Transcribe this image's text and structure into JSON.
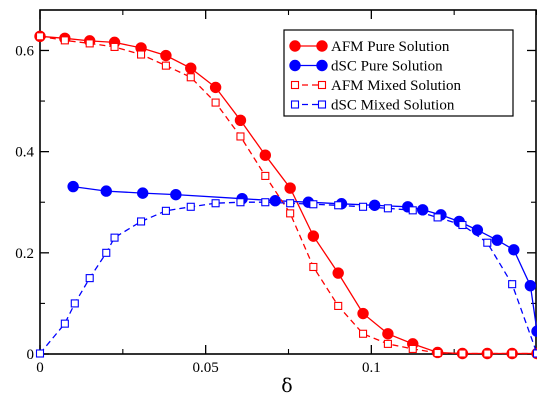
{
  "chart_data": {
    "type": "line",
    "title": "",
    "xlabel": "δ",
    "ylabel": "",
    "xlim": [
      0,
      0.15
    ],
    "ylim": [
      0,
      0.68
    ],
    "x_ticks": [
      0,
      0.05,
      0.1
    ],
    "x_tick_labels": [
      "0",
      "0.05",
      "0.1"
    ],
    "y_ticks": [
      0,
      0.2,
      0.4,
      0.6
    ],
    "y_tick_labels": [
      "0",
      "0.2",
      "0.4",
      "0.6"
    ],
    "grid": false,
    "legend_placement": "top-right",
    "series": [
      {
        "name": "AFM Pure Solution",
        "color": "#ff0000",
        "marker": "filled-circle",
        "line": "solid",
        "x": [
          0,
          0.0075,
          0.015,
          0.0225,
          0.0305,
          0.038,
          0.0455,
          0.053,
          0.0605,
          0.068,
          0.0755,
          0.0825,
          0.09,
          0.0975,
          0.105,
          0.1125,
          0.12,
          0.1275,
          0.135,
          0.1425,
          0.15
        ],
        "y": [
          0.628,
          0.624,
          0.619,
          0.616,
          0.605,
          0.59,
          0.565,
          0.527,
          0.462,
          0.393,
          0.328,
          0.233,
          0.16,
          0.08,
          0.04,
          0.02,
          0.003,
          0.001,
          0.001,
          0.001,
          0.001
        ]
      },
      {
        "name": "dSC Pure Solution",
        "color": "#0000ff",
        "marker": "filled-circle",
        "line": "solid",
        "x": [
          0.01,
          0.02,
          0.031,
          0.041,
          0.061,
          0.071,
          0.081,
          0.091,
          0.101,
          0.111,
          0.1155,
          0.121,
          0.1265,
          0.132,
          0.138,
          0.143,
          0.148,
          0.15
        ],
        "y": [
          0.331,
          0.322,
          0.318,
          0.315,
          0.307,
          0.303,
          0.3,
          0.297,
          0.294,
          0.291,
          0.285,
          0.275,
          0.262,
          0.245,
          0.225,
          0.206,
          0.135,
          0.045
        ]
      },
      {
        "name": "AFM Mixed Solution",
        "color": "#ff0000",
        "marker": "open-square",
        "line": "dashed",
        "x": [
          0,
          0.0075,
          0.015,
          0.0225,
          0.0305,
          0.038,
          0.0455,
          0.053,
          0.0605,
          0.068,
          0.0755,
          0.0825,
          0.09,
          0.0975,
          0.105,
          0.1125,
          0.12,
          0.1275,
          0.135,
          0.1425,
          0.15
        ],
        "y": [
          0.628,
          0.62,
          0.614,
          0.607,
          0.592,
          0.57,
          0.547,
          0.497,
          0.43,
          0.352,
          0.278,
          0.172,
          0.095,
          0.04,
          0.02,
          0.01,
          0.002,
          0.001,
          0.001,
          0.001,
          0.001
        ]
      },
      {
        "name": "dSC Mixed Solution",
        "color": "#0000ff",
        "marker": "open-square",
        "line": "dashed",
        "x": [
          0,
          0.0075,
          0.0105,
          0.015,
          0.02,
          0.0225,
          0.0305,
          0.038,
          0.0455,
          0.053,
          0.0605,
          0.068,
          0.0755,
          0.0825,
          0.09,
          0.0975,
          0.105,
          0.1125,
          0.12,
          0.1275,
          0.135,
          0.1425,
          0.15
        ],
        "y": [
          0.001,
          0.06,
          0.1,
          0.15,
          0.2,
          0.23,
          0.262,
          0.283,
          0.291,
          0.298,
          0.3,
          0.3,
          0.298,
          0.296,
          0.294,
          0.291,
          0.288,
          0.284,
          0.27,
          0.255,
          0.22,
          0.138,
          0.001
        ]
      }
    ]
  }
}
